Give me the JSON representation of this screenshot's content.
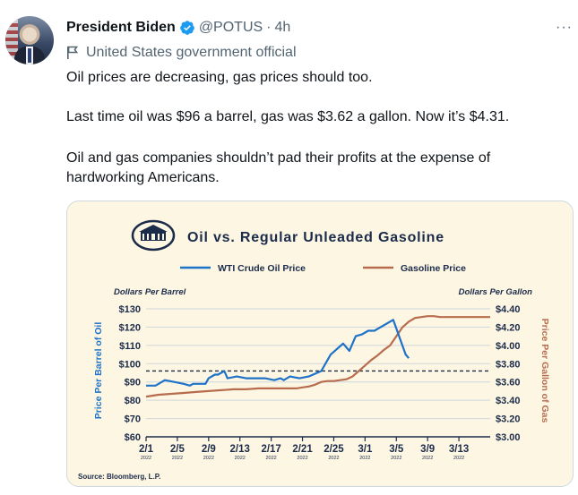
{
  "tweet": {
    "author_name": "President Biden",
    "handle": "@POTUS",
    "separator": "·",
    "time": "4h",
    "affiliation": "United States government official",
    "more": "···",
    "lines": [
      "Oil prices are decreasing, gas prices should too.",
      "Last time oil was $96 a barrel, gas was $3.62 a gallon. Now it’s $4.31.",
      "Oil and gas companies shouldn’t pad their profits at the expense of",
      "hardworking Americans."
    ]
  },
  "colors": {
    "oil": "#1e73c8",
    "gas": "#b86c4e",
    "accent": "#1d9bf0",
    "title": "#1b2b4a"
  },
  "chart_data": {
    "type": "line",
    "title": "Oil vs. Regular Unleaded Gasoline",
    "left_unit": "Dollars Per Barrel",
    "right_unit": "Dollars Per Gallon",
    "ylabel": "Price Per Barrel of Oil",
    "ylabel_right": "Price Per Gallon of Gas",
    "source": "Source: Bloomberg, L.P.",
    "ylim": [
      60,
      130
    ],
    "ylim_right": [
      3.0,
      4.4
    ],
    "yticks": [
      "$130",
      "$120",
      "$110",
      "$100",
      "$90",
      "$80",
      "$70",
      "$60"
    ],
    "yticks_right": [
      "$4.40",
      "$4.20",
      "$4.00",
      "$3.80",
      "$3.60",
      "$3.40",
      "$3.20",
      "$3.00"
    ],
    "xticks": [
      "2/1",
      "2/5",
      "2/9",
      "2/13",
      "2/17",
      "2/21",
      "2/25",
      "3/1",
      "3/5",
      "3/9",
      "3/13"
    ],
    "xtick_year": "2022",
    "reference_line": 96,
    "series": [
      {
        "name": "WTI Crude Oil Price",
        "axis": "left",
        "x": [
          0,
          3,
          4,
          6,
          9,
          12,
          14,
          15,
          19,
          20,
          22,
          23,
          25,
          26,
          29,
          32,
          38,
          41,
          43,
          44,
          46,
          49,
          52,
          56,
          59,
          63,
          65,
          67,
          69,
          71,
          73,
          79,
          83,
          84
        ],
        "values": [
          88,
          88,
          89,
          91,
          90,
          89,
          88,
          89,
          89,
          92,
          94,
          94,
          96,
          92,
          93,
          92,
          92,
          91,
          92,
          91,
          93,
          92,
          93,
          96,
          105,
          111,
          107,
          115,
          116,
          118,
          118,
          124,
          105,
          103
        ]
      },
      {
        "name": "Gasoline Price",
        "axis": "right",
        "x": [
          0,
          4,
          8,
          12,
          16,
          20,
          24,
          28,
          32,
          36,
          38,
          40,
          42,
          44,
          46,
          48,
          50,
          52,
          54,
          56,
          58,
          60,
          62,
          64,
          66,
          68,
          70,
          72,
          74,
          76,
          78,
          79,
          80,
          81,
          82,
          84,
          86,
          88,
          90,
          92,
          94,
          96,
          98,
          100,
          102,
          104,
          106,
          108,
          110
        ],
        "values": [
          3.44,
          3.46,
          3.47,
          3.48,
          3.49,
          3.5,
          3.51,
          3.52,
          3.52,
          3.53,
          3.53,
          3.53,
          3.53,
          3.53,
          3.53,
          3.53,
          3.54,
          3.55,
          3.57,
          3.6,
          3.61,
          3.61,
          3.62,
          3.63,
          3.66,
          3.72,
          3.78,
          3.84,
          3.89,
          3.95,
          4.0,
          4.05,
          4.1,
          4.15,
          4.2,
          4.26,
          4.3,
          4.31,
          4.32,
          4.32,
          4.31,
          4.31,
          4.31,
          4.31,
          4.31,
          4.31,
          4.31,
          4.31,
          4.31
        ]
      }
    ]
  }
}
